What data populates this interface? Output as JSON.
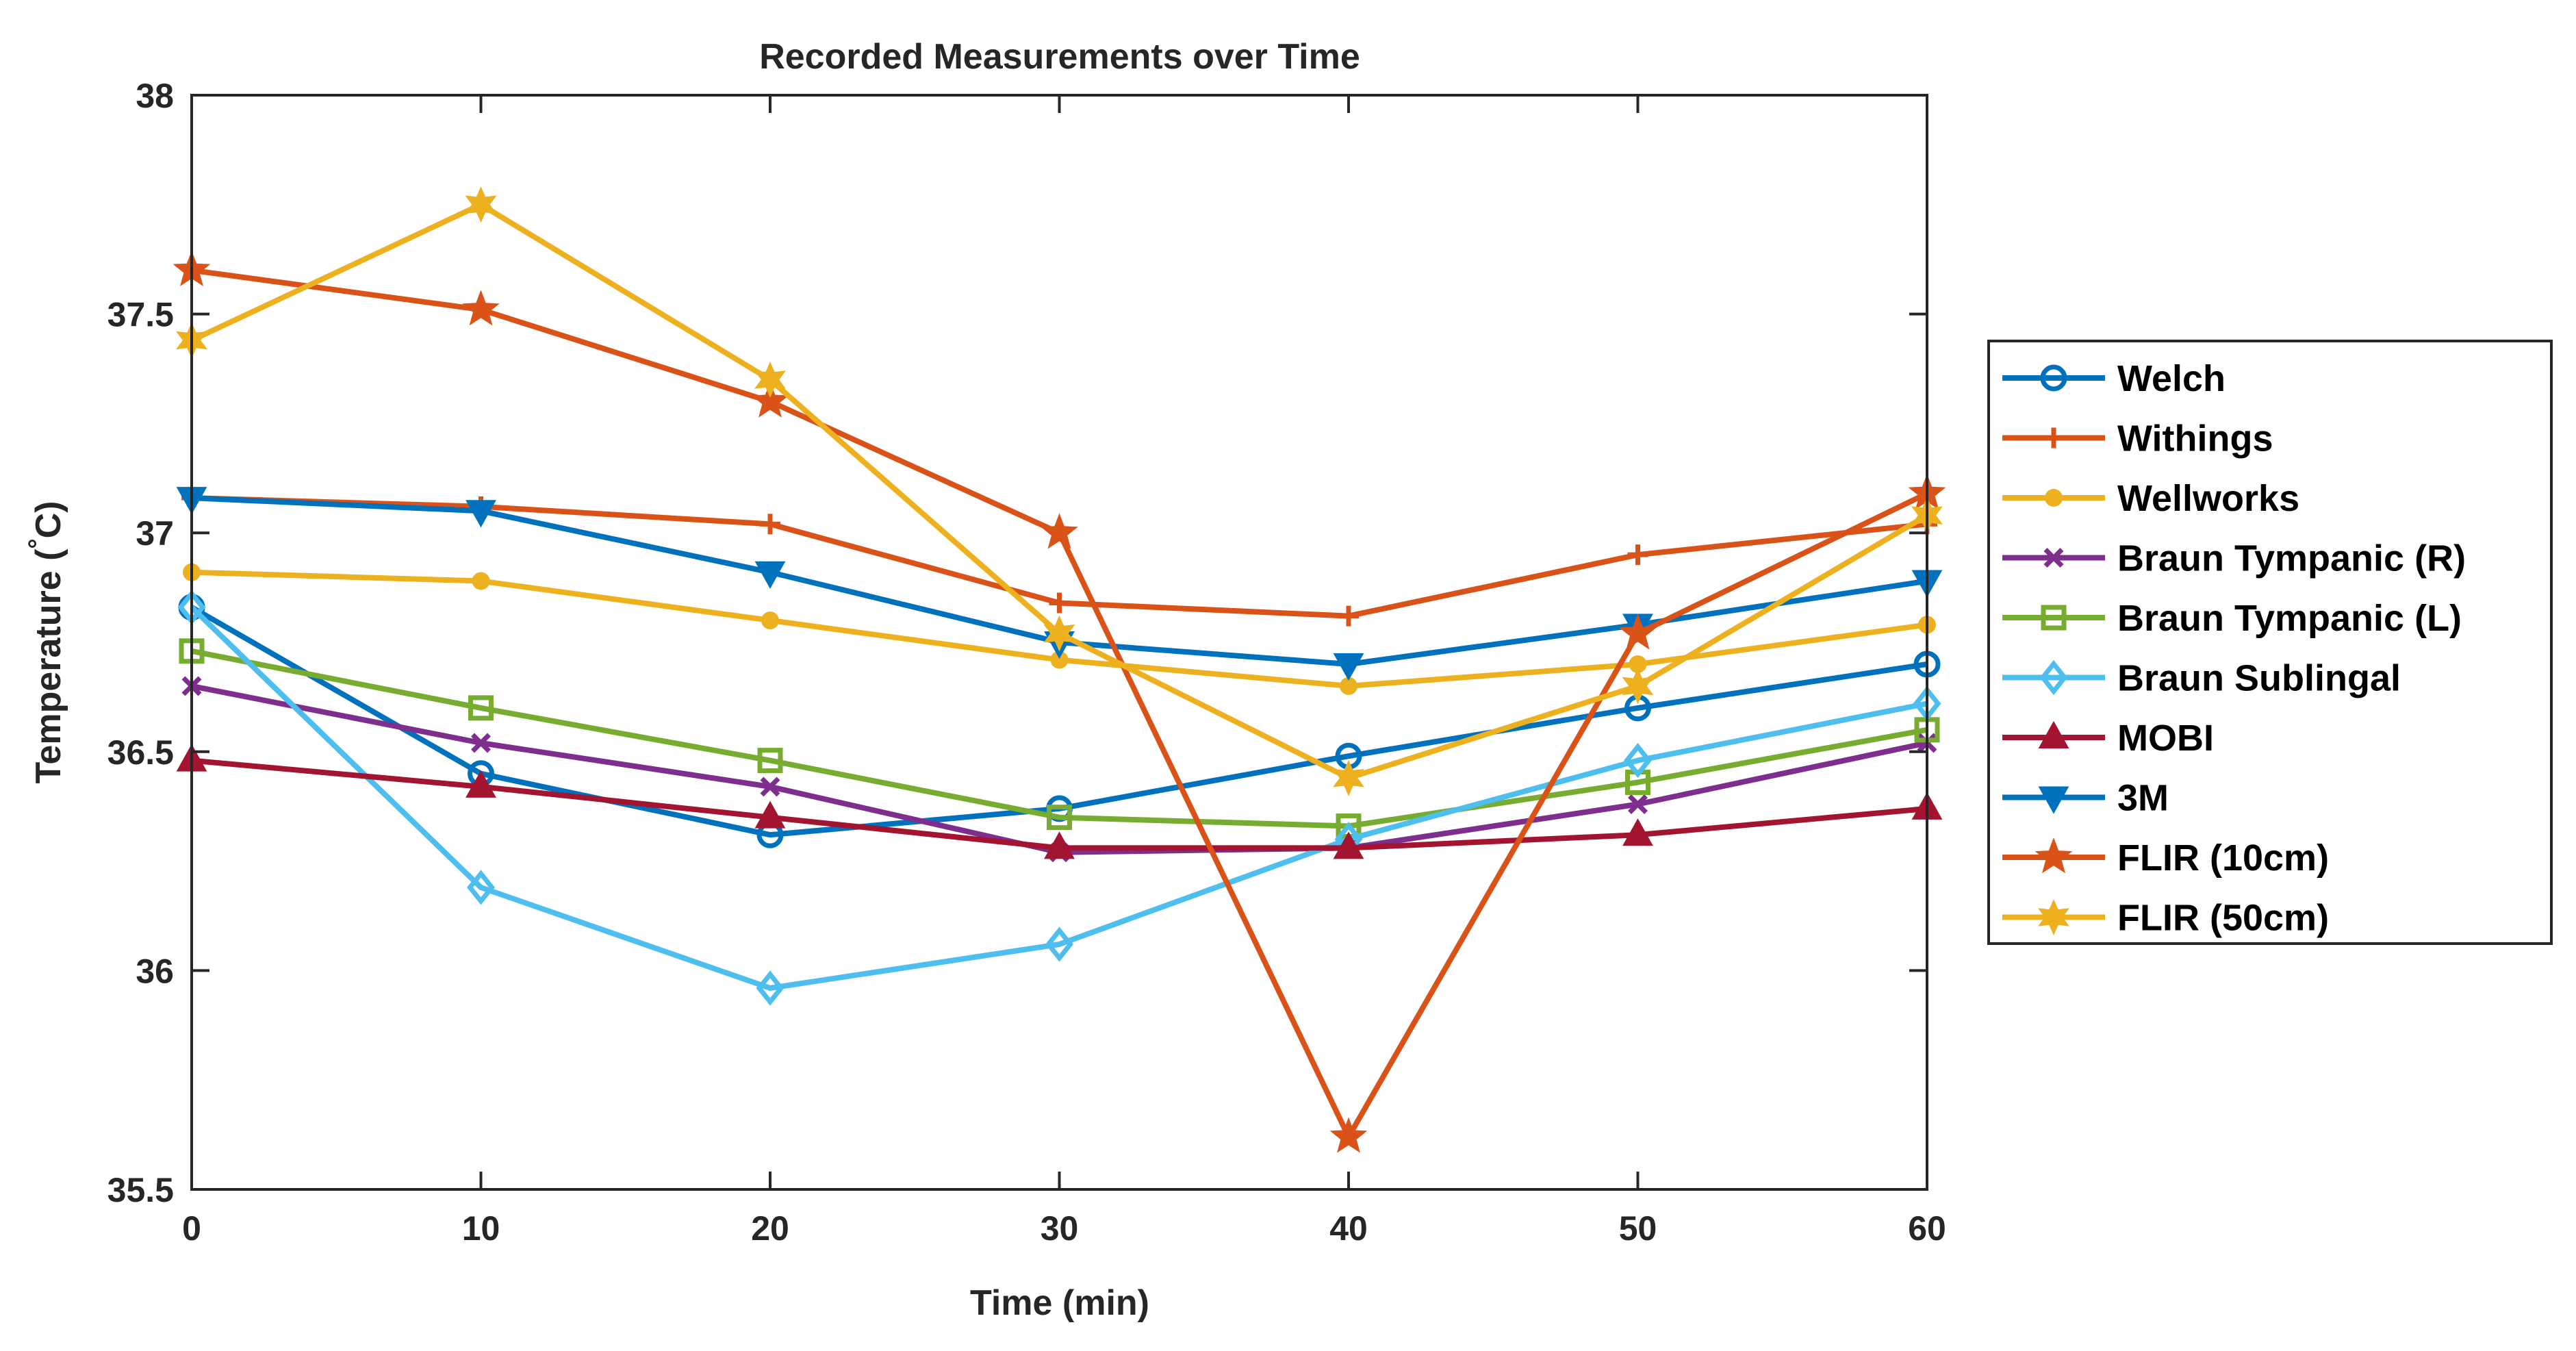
{
  "chart_data": {
    "type": "line",
    "title": "Recorded Measurements over Time",
    "xlabel": "Time (min)",
    "ylabel": "Temperature (°C)",
    "ylabel_pre": "Temperature (",
    "ylabel_deg": "°",
    "ylabel_post": "C)",
    "xlim": [
      0,
      60
    ],
    "ylim": [
      35.5,
      38
    ],
    "x": [
      0,
      10,
      20,
      30,
      40,
      50,
      60
    ],
    "xticks": [
      "0",
      "10",
      "20",
      "30",
      "40",
      "50",
      "60"
    ],
    "yticks": [
      "35.5",
      "36",
      "36.5",
      "37",
      "37.5",
      "38"
    ],
    "ytick_values": [
      35.5,
      36,
      36.5,
      37,
      37.5,
      38
    ],
    "grid": false,
    "legend_position": "right",
    "series": [
      {
        "name": "Welch",
        "color": "#0072BD",
        "marker": "circle",
        "values": [
          36.83,
          36.45,
          36.31,
          36.37,
          36.49,
          36.6,
          36.7
        ]
      },
      {
        "name": "Withings",
        "color": "#D95319",
        "marker": "plus",
        "values": [
          37.08,
          37.06,
          37.02,
          36.84,
          36.81,
          36.95,
          37.02
        ]
      },
      {
        "name": "Wellworks",
        "color": "#EDB120",
        "marker": "dot",
        "values": [
          36.91,
          36.89,
          36.8,
          36.71,
          36.65,
          36.7,
          36.79
        ]
      },
      {
        "name": "Braun Tympanic (R)",
        "color": "#7E2F8E",
        "marker": "x",
        "values": [
          36.65,
          36.52,
          36.42,
          36.27,
          36.28,
          36.38,
          36.52
        ]
      },
      {
        "name": "Braun Tympanic (L)",
        "color": "#77AC30",
        "marker": "square",
        "values": [
          36.73,
          36.6,
          36.48,
          36.35,
          36.33,
          36.43,
          36.55
        ]
      },
      {
        "name": "Braun Sublingal",
        "color": "#4DBEEE",
        "marker": "diamond",
        "values": [
          36.83,
          36.19,
          35.96,
          36.06,
          36.3,
          36.48,
          36.61
        ]
      },
      {
        "name": "MOBI",
        "color": "#A2142F",
        "marker": "triangle-up",
        "values": [
          36.48,
          36.42,
          36.35,
          36.28,
          36.28,
          36.31,
          36.37
        ]
      },
      {
        "name": "3M",
        "color": "#0072BD",
        "marker": "triangle-down",
        "values": [
          37.08,
          37.05,
          36.91,
          36.75,
          36.7,
          36.79,
          36.89
        ]
      },
      {
        "name": "FLIR (10cm)",
        "color": "#D95319",
        "marker": "pentagram",
        "values": [
          37.6,
          37.51,
          37.3,
          37.0,
          35.62,
          36.77,
          37.09
        ]
      },
      {
        "name": "FLIR (50cm)",
        "color": "#EDB120",
        "marker": "hexagram",
        "values": [
          37.44,
          37.75,
          37.35,
          36.77,
          36.44,
          36.65,
          37.04
        ]
      }
    ]
  }
}
